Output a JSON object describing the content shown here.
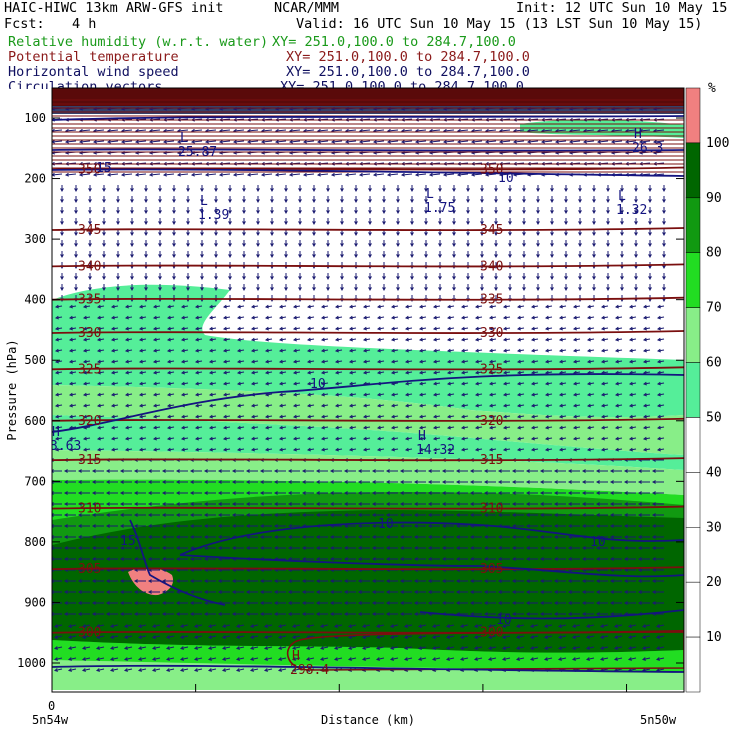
{
  "header": {
    "model": "HAIC-HIWC 13km ARW-GFS init",
    "center": "NCAR/MMM",
    "init": "Init: 12 UTC Sun 10 May 15",
    "fcst_label": "Fcst:",
    "fcst_value": "4 h",
    "valid": "Valid: 16 UTC Sun 10 May 15 (13 LST Sun 10 May 15)",
    "fields": [
      {
        "name": "Relative humidity (w.r.t. water)",
        "xy": "XY= 251.0,100.0 to 284.7,100.0",
        "color": "#1a9a1a"
      },
      {
        "name": "Potential temperature",
        "xy": "XY= 251.0,100.0 to 284.7,100.0",
        "color": "#8b1a1a"
      },
      {
        "name": "Horizontal wind speed",
        "xy": "XY= 251.0,100.0 to 284.7,100.0",
        "color": "#101060"
      },
      {
        "name": "Circulation vectors",
        "xy": "XY= 251.0,100.0 to 284.7,100.0",
        "color": "#101060"
      }
    ]
  },
  "chart_data": {
    "type": "heatmap",
    "ylabel": "Pressure (hPa)",
    "xlabel": "Distance (km)",
    "x_left_label": "5n54w",
    "x_right_label": "5n50w",
    "x_zero_label": "0",
    "y_ticks": [
      100,
      200,
      300,
      400,
      500,
      600,
      700,
      800,
      900,
      1000
    ],
    "ylim": [
      60,
      1050
    ],
    "colorbar": {
      "unit": "%",
      "levels": [
        10,
        20,
        30,
        40,
        50,
        60,
        70,
        80,
        90,
        100
      ],
      "colors": [
        "#ffffff",
        "#ffffff",
        "#ffffff",
        "#ffffff",
        "#ffffff",
        "#55ee99",
        "#88ee88",
        "#22dd22",
        "#119911",
        "#006600",
        "#f08080"
      ]
    },
    "theta_contours": [
      {
        "label": "345",
        "p": 285
      },
      {
        "label": "340",
        "p": 345
      },
      {
        "label": "335",
        "p": 400
      },
      {
        "label": "330",
        "p": 455
      },
      {
        "label": "325",
        "p": 515
      },
      {
        "label": "320",
        "p": 600
      },
      {
        "label": "315",
        "p": 665
      },
      {
        "label": "310",
        "p": 745
      },
      {
        "label": "305",
        "p": 845
      },
      {
        "label": "300",
        "p": 950
      },
      {
        "label": "350",
        "p": 185
      }
    ],
    "wind_contour_labels": [
      "10",
      "10",
      "10",
      "10",
      "15",
      "15",
      "10"
    ],
    "extrema": [
      {
        "type": "L",
        "value": "1.39"
      },
      {
        "type": "L",
        "value": "1.75"
      },
      {
        "type": "L",
        "value": "1.32"
      },
      {
        "type": "H",
        "value": "3.63"
      },
      {
        "type": "H",
        "value": "14.32"
      },
      {
        "type": "H",
        "value": "298.4"
      },
      {
        "type": "L",
        "value": "25.87"
      },
      {
        "type": "H",
        "value": "26.3"
      }
    ]
  }
}
